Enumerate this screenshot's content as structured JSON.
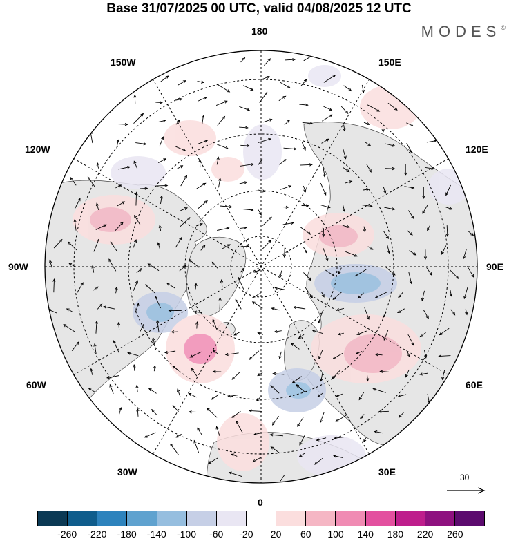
{
  "title": "Base 31/07/2025 00 UTC, valid 04/08/2025 12 UTC",
  "brand": "MODES",
  "brand_mark": "©",
  "longitude_labels": {
    "top": "180",
    "top_left": "150W",
    "top_right": "150E",
    "upper_left": "120W",
    "upper_right": "120E",
    "left": "90W",
    "right": "90E",
    "lower_left": "60W",
    "lower_right": "60E",
    "bottom_left": "30W",
    "bottom_right": "30E",
    "bottom": "0"
  },
  "wind_reference": {
    "label": "30",
    "units_value": 30
  },
  "colorbar": {
    "ticks": [
      "-260",
      "-220",
      "-180",
      "-140",
      "-100",
      "-60",
      "-20",
      "20",
      "60",
      "100",
      "140",
      "180",
      "220",
      "260"
    ],
    "colors": [
      "#0b3954",
      "#0f5d8c",
      "#2d83bd",
      "#5fa2cf",
      "#96bedf",
      "#c6cfe6",
      "#e9e6f3",
      "#ffffff",
      "#fbdede",
      "#f5b6c4",
      "#f08bb3",
      "#e3509f",
      "#be1e8c",
      "#8e117f",
      "#5c0b6e"
    ]
  },
  "map_colors": {
    "ocean": "#ffffff",
    "land": "#e6e6e6",
    "positive_light": "#fbdede",
    "positive_mid": "#f5b6c4",
    "positive_strong": "#f08bb3",
    "negative_light": "#e9e6f3",
    "negative_mid": "#c6cfe6",
    "negative_strong": "#96bedf",
    "negative_core": "#5fa2cf"
  }
}
